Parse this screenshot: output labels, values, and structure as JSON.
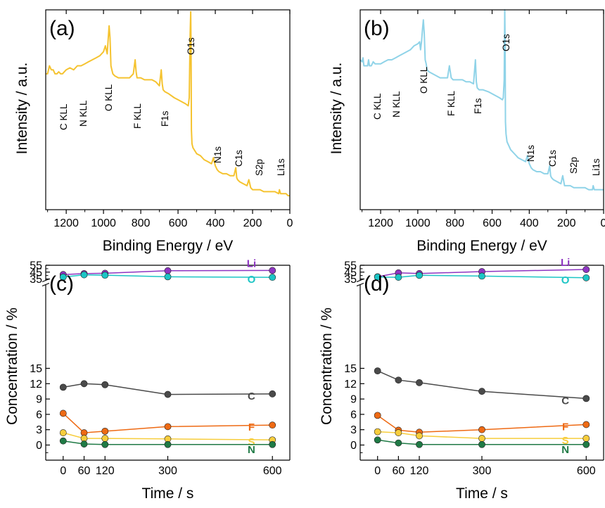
{
  "colors": {
    "panel_a_line": "#F5C330",
    "panel_b_line": "#8FD3E8",
    "Li": "#8E35C2",
    "O": "#1CC5C5",
    "C": "#4A4A4A",
    "F": "#EE6A14",
    "S": "#F7CD3C",
    "N": "#1F7A45"
  },
  "chart_data": [
    {
      "panel": "(a)",
      "type": "line",
      "title": "",
      "xlabel": "Binding Energy / eV",
      "ylabel": "Intensity / a.u.",
      "xlim": [
        1310,
        0
      ],
      "xticks": [
        1200,
        1000,
        800,
        600,
        400,
        200,
        0
      ],
      "ylim": [
        0,
        100
      ],
      "yticks_shown": false,
      "series": [
        {
          "x": [
            1310,
            1300,
            1290,
            1280,
            1270,
            1260,
            1250,
            1240,
            1230,
            1220,
            1200,
            1180,
            1160,
            1140,
            1120,
            1100,
            1080,
            1060,
            1040,
            1020,
            1000,
            990,
            980,
            975,
            970,
            965,
            960,
            955,
            950,
            940,
            920,
            900,
            880,
            860,
            840,
            830,
            825,
            820,
            810,
            800,
            780,
            760,
            740,
            720,
            700,
            690,
            685,
            680,
            670,
            650,
            620,
            600,
            580,
            560,
            545,
            540,
            535,
            532,
            530,
            528,
            525,
            520,
            500,
            480,
            460,
            440,
            420,
            410,
            400,
            395,
            390,
            380,
            360,
            340,
            320,
            300,
            290,
            285,
            280,
            270,
            250,
            230,
            220,
            210,
            200,
            180,
            160,
            140,
            120,
            100,
            80,
            60,
            56,
            50,
            40,
            30,
            20,
            10,
            0
          ],
          "y": [
            68,
            68,
            72,
            70,
            70,
            68,
            68,
            69,
            68,
            68,
            70,
            71,
            70,
            72,
            72,
            73,
            74,
            75,
            76,
            77,
            79,
            82,
            78,
            85,
            92,
            86,
            72,
            70,
            68,
            67,
            66,
            66,
            66,
            66,
            68,
            75,
            69,
            66,
            66,
            66,
            65,
            65,
            65,
            64,
            62,
            70,
            63,
            60,
            59,
            58,
            56,
            55,
            54,
            53,
            52,
            56,
            88,
            99,
            80,
            40,
            33,
            31,
            28,
            27,
            25,
            24,
            23,
            26,
            22,
            21,
            20,
            19,
            18,
            18,
            17,
            17,
            21,
            16,
            15,
            14,
            13,
            12,
            15,
            11,
            10,
            10,
            10,
            9,
            9,
            9,
            9,
            8,
            10,
            8,
            8,
            8,
            8,
            7,
            7
          ]
        }
      ],
      "annotations": [
        "C KLL",
        "N KLL",
        "O KLL",
        "F KLL",
        "F1s",
        "O1s",
        "N1s",
        "C1s",
        "S2p",
        "Li1s"
      ]
    },
    {
      "panel": "(b)",
      "type": "line",
      "title": "",
      "xlabel": "Binding Energy / eV",
      "ylabel": "Intensity / a.u.",
      "xlim": [
        1310,
        0
      ],
      "xticks": [
        1200,
        1000,
        800,
        600,
        400,
        200,
        0
      ],
      "ylim": [
        0,
        100
      ],
      "yticks_shown": false,
      "series": [
        {
          "x": [
            1310,
            1300,
            1295,
            1290,
            1280,
            1270,
            1265,
            1260,
            1250,
            1240,
            1230,
            1220,
            1200,
            1180,
            1160,
            1140,
            1120,
            1100,
            1080,
            1060,
            1040,
            1020,
            1000,
            990,
            985,
            980,
            975,
            970,
            965,
            960,
            955,
            950,
            940,
            920,
            900,
            880,
            860,
            840,
            830,
            825,
            820,
            810,
            800,
            780,
            760,
            740,
            720,
            700,
            690,
            685,
            680,
            670,
            650,
            620,
            600,
            580,
            560,
            545,
            540,
            535,
            532,
            530,
            528,
            525,
            520,
            500,
            480,
            460,
            440,
            420,
            410,
            400,
            395,
            390,
            380,
            360,
            340,
            320,
            300,
            290,
            285,
            280,
            270,
            250,
            230,
            220,
            210,
            200,
            180,
            160,
            140,
            120,
            100,
            80,
            60,
            56,
            50,
            40,
            30,
            20,
            10,
            0
          ],
          "y": [
            75,
            74,
            76,
            72,
            72,
            72,
            75,
            72,
            72,
            74,
            73,
            73,
            73,
            74,
            75,
            75,
            76,
            77,
            78,
            79,
            80,
            82,
            83,
            84,
            80,
            84,
            90,
            95,
            88,
            75,
            73,
            70,
            69,
            68,
            67,
            66,
            66,
            66,
            72,
            69,
            66,
            65,
            65,
            65,
            65,
            64,
            64,
            63,
            75,
            64,
            61,
            60,
            60,
            59,
            58,
            57,
            56,
            55,
            56,
            65,
            100,
            85,
            44,
            38,
            34,
            30,
            28,
            26,
            25,
            24,
            27,
            23,
            22,
            21,
            20,
            19,
            19,
            18,
            18,
            22,
            17,
            16,
            15,
            14,
            13,
            17,
            12,
            12,
            12,
            11,
            11,
            11,
            11,
            10,
            10,
            12,
            10,
            10,
            10,
            10,
            10,
            10
          ]
        }
      ],
      "annotations": [
        "C KLL",
        "N KLL",
        "O KLL",
        "F KLL",
        "F1s",
        "O1s",
        "N1s",
        "C1s",
        "S2p",
        "Li1s"
      ]
    },
    {
      "panel": "(c)",
      "type": "line",
      "title": "",
      "xlabel": "Time / s",
      "ylabel": "Concentration / %",
      "xlim": [
        -50,
        650
      ],
      "xticks": [
        0,
        60,
        120,
        300,
        600
      ],
      "ylim": [
        -3,
        55
      ],
      "axis_break": [
        18,
        35
      ],
      "yticks": [
        0,
        3,
        6,
        9,
        12,
        15,
        35,
        45,
        55
      ],
      "x": [
        0,
        60,
        120,
        300,
        600
      ],
      "series": [
        {
          "name": "Li",
          "values": [
            41.5,
            42.8,
            43.3,
            47.0,
            47.4
          ]
        },
        {
          "name": "O",
          "values": [
            37.8,
            41.1,
            40.5,
            38.2,
            37.4
          ]
        },
        {
          "name": "C",
          "values": [
            11.3,
            12.0,
            11.8,
            9.9,
            10.0
          ]
        },
        {
          "name": "F",
          "values": [
            6.2,
            2.4,
            2.7,
            3.6,
            3.9
          ]
        },
        {
          "name": "S",
          "values": [
            2.4,
            1.3,
            1.3,
            1.2,
            1.0
          ]
        },
        {
          "name": "N",
          "values": [
            0.8,
            0.2,
            0.1,
            0.1,
            0.1
          ]
        }
      ]
    },
    {
      "panel": "(d)",
      "type": "line",
      "title": "",
      "xlabel": "Time / s",
      "ylabel": "Concentration / %",
      "xlim": [
        -50,
        650
      ],
      "xticks": [
        0,
        60,
        120,
        300,
        600
      ],
      "ylim": [
        -3,
        55
      ],
      "axis_break": [
        18,
        35
      ],
      "yticks": [
        0,
        3,
        6,
        9,
        12,
        15,
        35,
        45,
        55
      ],
      "x": [
        0,
        60,
        120,
        300,
        600
      ],
      "series": [
        {
          "name": "Li",
          "values": [
            38.2,
            43.9,
            42.9,
            45.8,
            48.8
          ]
        },
        {
          "name": "O",
          "values": [
            37.9,
            37.5,
            40.3,
            39.2,
            36.7
          ]
        },
        {
          "name": "C",
          "values": [
            14.5,
            12.7,
            12.2,
            10.5,
            9.1
          ]
        },
        {
          "name": "F",
          "values": [
            5.8,
            2.9,
            2.5,
            3.0,
            4.0
          ]
        },
        {
          "name": "S",
          "values": [
            2.6,
            2.4,
            1.8,
            1.3,
            1.3
          ]
        },
        {
          "name": "N",
          "values": [
            1.0,
            0.4,
            0.1,
            0.1,
            0.1
          ]
        }
      ]
    }
  ]
}
